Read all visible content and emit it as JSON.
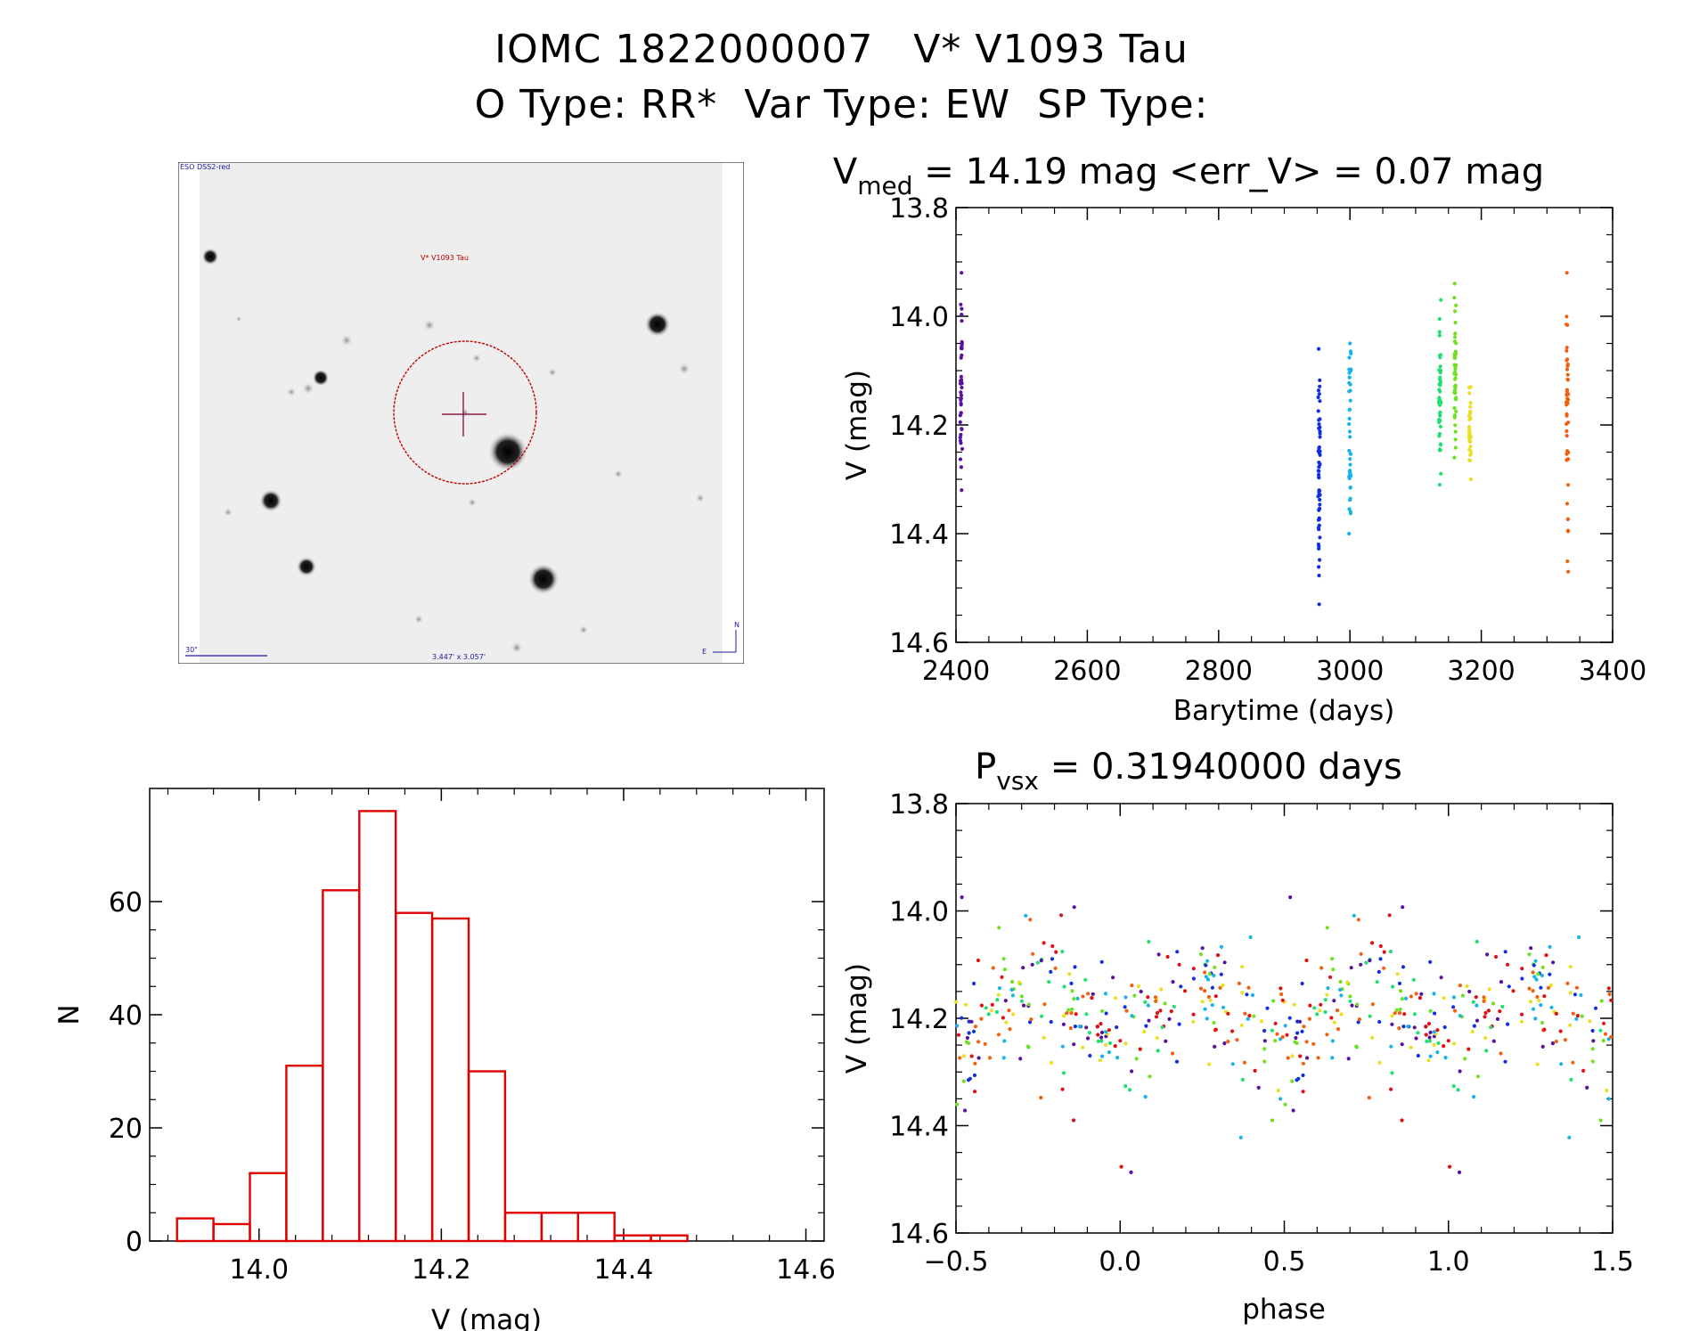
{
  "header": {
    "title_line1": "IOMC 1822000007   V* V1093 Tau",
    "title_line2": "O Type: RR*  Var Type: EW  SP Type:"
  },
  "finder_chart": {
    "survey_label": "ESO DSS2-red",
    "target_label": "V* V1093 Tau",
    "scale_label": "30\"",
    "fov_label": "3.447' x 3.057'",
    "north_label": "N",
    "east_label": "E",
    "marker_color": "#8b1a4a",
    "circle_color": "#c00000"
  },
  "chart_data": [
    {
      "id": "light_curve",
      "type": "scatter",
      "title": "V_med = 14.19 mag <err_V> = 0.07 mag",
      "title_parts": {
        "main": "V",
        "sub": "med",
        "rest": " = 14.19 mag <err_V> = 0.07 mag"
      },
      "xlabel": "Barytime (days)",
      "ylabel": "V (mag)",
      "xlim": [
        2400,
        3400
      ],
      "ylim": [
        14.6,
        13.8
      ],
      "y_inverted": true,
      "xticks": [
        2400,
        2600,
        2800,
        3000,
        3200,
        3400
      ],
      "xtick_labels": [
        "2400",
        "2600",
        "2800",
        "3000",
        "3200",
        "3400"
      ],
      "yticks": [
        13.8,
        14.0,
        14.2,
        14.4,
        14.6
      ],
      "ytick_labels": [
        "13.8",
        "14.0",
        "14.2",
        "14.4",
        "14.6"
      ],
      "series": [
        {
          "color": "#5a10a0",
          "x_center": 2408,
          "y_min": 14.32,
          "y_max": 13.92,
          "n": 40
        },
        {
          "color": "#1030e0",
          "x_center": 2953,
          "y_min": 14.53,
          "y_max": 14.06,
          "n": 55
        },
        {
          "color": "#18b4e8",
          "x_center": 3000,
          "y_min": 14.4,
          "y_max": 14.05,
          "n": 40
        },
        {
          "color": "#20e070",
          "x_center": 3137,
          "y_min": 14.31,
          "y_max": 13.97,
          "n": 50
        },
        {
          "color": "#70e020",
          "x_center": 3160,
          "y_min": 14.26,
          "y_max": 13.94,
          "n": 45
        },
        {
          "color": "#e8e020",
          "x_center": 3183,
          "y_min": 14.3,
          "y_max": 14.13,
          "n": 35
        },
        {
          "color": "#f06010",
          "x_center": 3331,
          "y_min": 14.47,
          "y_max": 13.92,
          "n": 45
        }
      ]
    },
    {
      "id": "histogram",
      "type": "bar",
      "xlabel": "V (mag)",
      "ylabel": "N",
      "bar_color": "#e00000",
      "xlim": [
        13.88,
        14.62
      ],
      "ylim": [
        0,
        80
      ],
      "xticks": [
        14.0,
        14.2,
        14.4,
        14.6
      ],
      "xtick_labels": [
        "14.0",
        "14.2",
        "14.4",
        "14.6"
      ],
      "yticks": [
        0,
        20,
        40,
        60
      ],
      "ytick_labels": [
        "0",
        "20",
        "40",
        "60"
      ],
      "bin_width": 0.04,
      "bin_starts": [
        13.91,
        13.95,
        13.99,
        14.03,
        14.07,
        14.11,
        14.15,
        14.19,
        14.23,
        14.27,
        14.31,
        14.35,
        14.39,
        14.43,
        14.47,
        14.51
      ],
      "counts": [
        4,
        3,
        12,
        31,
        62,
        76,
        58,
        57,
        30,
        5,
        5,
        5,
        1,
        1,
        0,
        0
      ]
    },
    {
      "id": "phased_curve",
      "type": "scatter",
      "title": "P_vsx = 0.31940000 days",
      "title_parts": {
        "main": "P",
        "sub": "vsx",
        "rest": " = 0.31940000 days"
      },
      "xlabel": "phase",
      "ylabel": "V (mag)",
      "xlim": [
        -0.5,
        1.5
      ],
      "ylim": [
        14.6,
        13.8
      ],
      "y_inverted": true,
      "xticks": [
        -0.5,
        0.0,
        0.5,
        1.0,
        1.5
      ],
      "xtick_labels": [
        "−0.5",
        "0.0",
        "0.5",
        "1.0",
        "1.5"
      ],
      "yticks": [
        13.8,
        14.0,
        14.2,
        14.4,
        14.6
      ],
      "ytick_labels": [
        "13.8",
        "14.0",
        "14.2",
        "14.4",
        "14.6"
      ],
      "colors": [
        "#5a10a0",
        "#1030e0",
        "#18b4e8",
        "#20e070",
        "#70e020",
        "#e8e020",
        "#f06010",
        "#e01010"
      ],
      "median_mag": 14.19
    }
  ]
}
